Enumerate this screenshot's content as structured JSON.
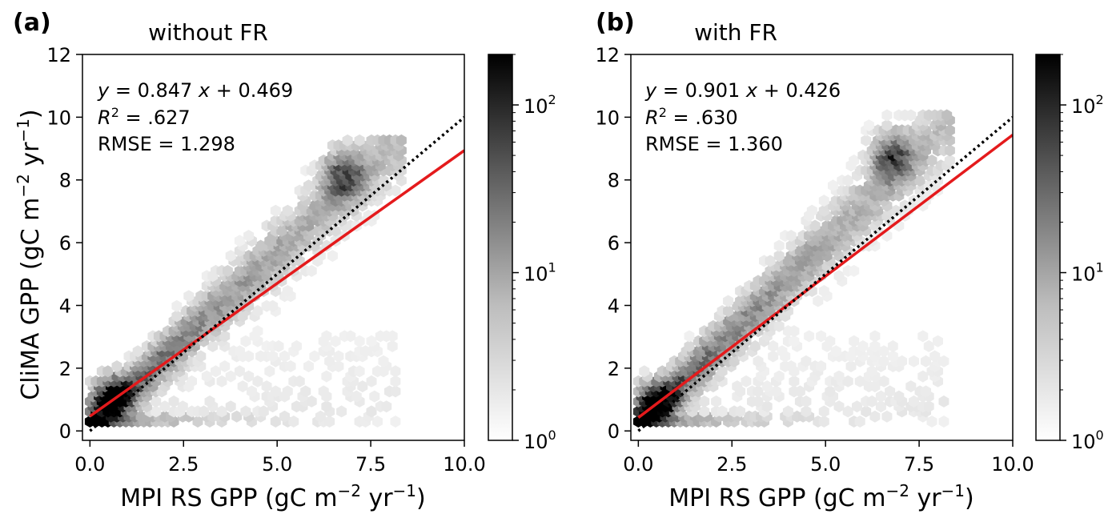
{
  "figure": {
    "shared_ylabel_base": "CliMA GPP (gC m",
    "shared_ylabel_exp1": "−2",
    "shared_ylabel_mid": " yr",
    "shared_ylabel_exp2": "−1",
    "shared_ylabel_end": ")"
  },
  "chart_data": [
    {
      "type": "scatter",
      "panel_label": "(a)",
      "title": "without FR",
      "xlabel": "MPI RS GPP (gC m⁻² yr⁻¹)",
      "ylabel": "CliMA GPP (gC m⁻² yr⁻¹)",
      "xlim": [
        -0.2,
        10.0
      ],
      "ylim": [
        -0.3,
        12.0
      ],
      "xticks": [
        0.0,
        2.5,
        5.0,
        7.5,
        10.0
      ],
      "xtick_labels": [
        "0.0",
        "2.5",
        "5.0",
        "7.5",
        "10.0"
      ],
      "yticks": [
        0,
        2,
        4,
        6,
        8,
        10,
        12
      ],
      "ytick_labels": [
        "0",
        "2",
        "4",
        "6",
        "8",
        "10",
        "12"
      ],
      "colorbar": {
        "scale": "log",
        "range": [
          1,
          200
        ],
        "tick_base": "10",
        "tick_exps": [
          "0",
          "1",
          "2"
        ],
        "tick_values": [
          1,
          10,
          100
        ]
      },
      "annotation": {
        "eq_prefix": "y",
        "eq_rest": " = 0.847 ",
        "eq_x": "x",
        "eq_tail": " + 0.469",
        "r2_prefix": "R",
        "r2_exp": "2",
        "r2_value": " = .627",
        "rmse": "RMSE = 1.298"
      },
      "series": [
        {
          "kind": "fit",
          "color": "#e41a1c",
          "slope": 0.847,
          "intercept": 0.469,
          "x": [
            0.0,
            10.0
          ],
          "y": [
            0.469,
            8.939
          ]
        },
        {
          "kind": "one_to_one",
          "color": "#000000",
          "style": "dotted",
          "x": [
            0.0,
            10.0
          ],
          "y": [
            0.0,
            10.0
          ]
        }
      ],
      "density_structure": {
        "main_band_center_slope": 1.1,
        "main_band_center_intercept": 0.2,
        "cluster_center": [
          6.8,
          8.2
        ],
        "max_x": 8.4,
        "max_y": 9.4,
        "low_band_y": 0.3,
        "peak_near": [
          0.6,
          1.1
        ]
      }
    },
    {
      "type": "scatter",
      "panel_label": "(b)",
      "title": "with FR",
      "xlabel": "MPI RS GPP (gC m⁻² yr⁻¹)",
      "ylabel": "",
      "xlim": [
        -0.2,
        10.0
      ],
      "ylim": [
        -0.3,
        12.0
      ],
      "xticks": [
        0.0,
        2.5,
        5.0,
        7.5,
        10.0
      ],
      "xtick_labels": [
        "0.0",
        "2.5",
        "5.0",
        "7.5",
        "10.0"
      ],
      "yticks": [
        0,
        2,
        4,
        6,
        8,
        10,
        12
      ],
      "ytick_labels": [
        "0",
        "2",
        "4",
        "6",
        "8",
        "10",
        "12"
      ],
      "colorbar": {
        "scale": "log",
        "range": [
          1,
          200
        ],
        "tick_base": "10",
        "tick_exps": [
          "0",
          "1",
          "2"
        ],
        "tick_values": [
          1,
          10,
          100
        ]
      },
      "annotation": {
        "eq_prefix": "y",
        "eq_rest": " = 0.901 ",
        "eq_x": "x",
        "eq_tail": " + 0.426",
        "r2_prefix": "R",
        "r2_exp": "2",
        "r2_value": " = .630",
        "rmse": "RMSE = 1.360"
      },
      "series": [
        {
          "kind": "fit",
          "color": "#e41a1c",
          "slope": 0.901,
          "intercept": 0.426,
          "x": [
            0.0,
            10.0
          ],
          "y": [
            0.426,
            9.436
          ]
        },
        {
          "kind": "one_to_one",
          "color": "#000000",
          "style": "dotted",
          "x": [
            0.0,
            10.0
          ],
          "y": [
            0.0,
            10.0
          ]
        }
      ],
      "density_structure": {
        "main_band_center_slope": 1.15,
        "main_band_center_intercept": 0.25,
        "cluster_center": [
          6.8,
          8.8
        ],
        "max_x": 8.4,
        "max_y": 10.2,
        "low_band_y": 0.3,
        "peak_near": [
          0.5,
          1.0
        ]
      }
    }
  ]
}
